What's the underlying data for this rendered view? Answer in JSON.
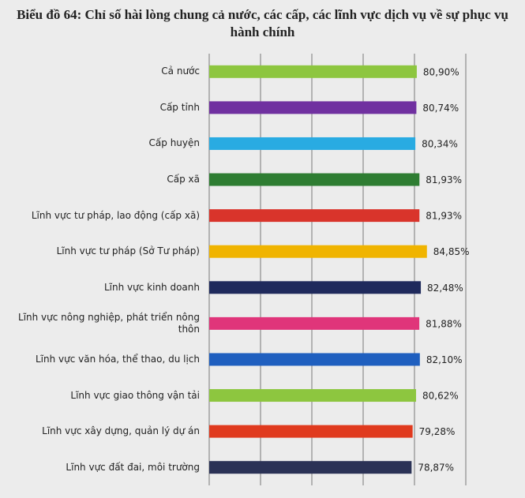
{
  "chart_data": {
    "type": "bar",
    "orientation": "horizontal",
    "title": "Biểu đồ 64: Chỉ số hài lòng chung cả nước, các cấp, các lĩnh vực dịch vụ về sự phục vụ hành chính",
    "categories": [
      "Cả nước",
      "Cấp tỉnh",
      "Cấp huyện",
      "Cấp xã",
      "Lĩnh vực tư pháp, lao động (cấp xã)",
      "Lĩnh vực tư pháp (Sở Tư pháp)",
      "Lĩnh vực kinh doanh",
      "Lĩnh vực nông nghiệp, phát triển nông thôn",
      "Lĩnh vực văn hóa, thể thao, du lịch",
      "Lĩnh vực giao thông vận tải",
      "Lĩnh vực xây dựng, quản lý dự án",
      "Lĩnh vực đất đai, môi trường"
    ],
    "values": [
      80.9,
      80.74,
      80.34,
      81.93,
      81.93,
      84.85,
      82.48,
      81.88,
      82.1,
      80.62,
      79.28,
      78.87
    ],
    "value_labels": [
      "80,90%",
      "80,74%",
      "80,34%",
      "81,93%",
      "81,93%",
      "84,85%",
      "82,48%",
      "81,88%",
      "82,10%",
      "80,62%",
      "79,28%",
      "78,87%"
    ],
    "colors": [
      "#8dc63f",
      "#7030a0",
      "#29abe2",
      "#2e7d32",
      "#d9342b",
      "#f0b400",
      "#1f2a5c",
      "#e0357a",
      "#1f5fbf",
      "#8dc63f",
      "#e03a1e",
      "#2b3256"
    ],
    "xlim": [
      0,
      100
    ],
    "xticks": [
      0,
      20,
      40,
      60,
      80,
      100
    ],
    "grid": true
  }
}
